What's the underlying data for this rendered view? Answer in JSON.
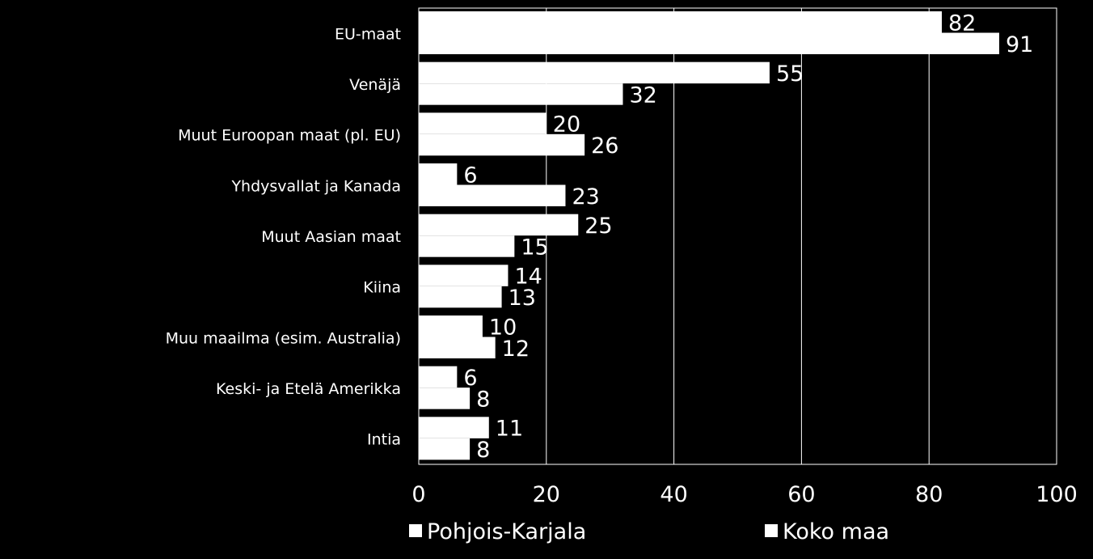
{
  "chart_data": {
    "type": "bar",
    "orientation": "horizontal",
    "categories": [
      "EU-maat",
      "Venäjä",
      "Muut Euroopan maat (pl. EU)",
      "Yhdysvallat ja Kanada",
      "Muut Aasian maat",
      "Kiina",
      "Muu maailma (esim. Australia)",
      "Keski- ja Etelä Amerikka",
      "Intia"
    ],
    "series": [
      {
        "name": "Pohjois-Karjala",
        "values": [
          82,
          55,
          20,
          6,
          25,
          14,
          10,
          6,
          11
        ]
      },
      {
        "name": "Koko maa",
        "values": [
          91,
          32,
          26,
          23,
          15,
          13,
          12,
          8,
          8
        ]
      }
    ],
    "xlim": [
      0,
      100
    ],
    "xticks": [
      0,
      20,
      40,
      60,
      80,
      100
    ],
    "grid": true,
    "legend_position": "bottom",
    "colors": {
      "background": "#000000",
      "bar": "#ffffff",
      "grid": "#ffffff",
      "text": "#ffffff"
    }
  }
}
